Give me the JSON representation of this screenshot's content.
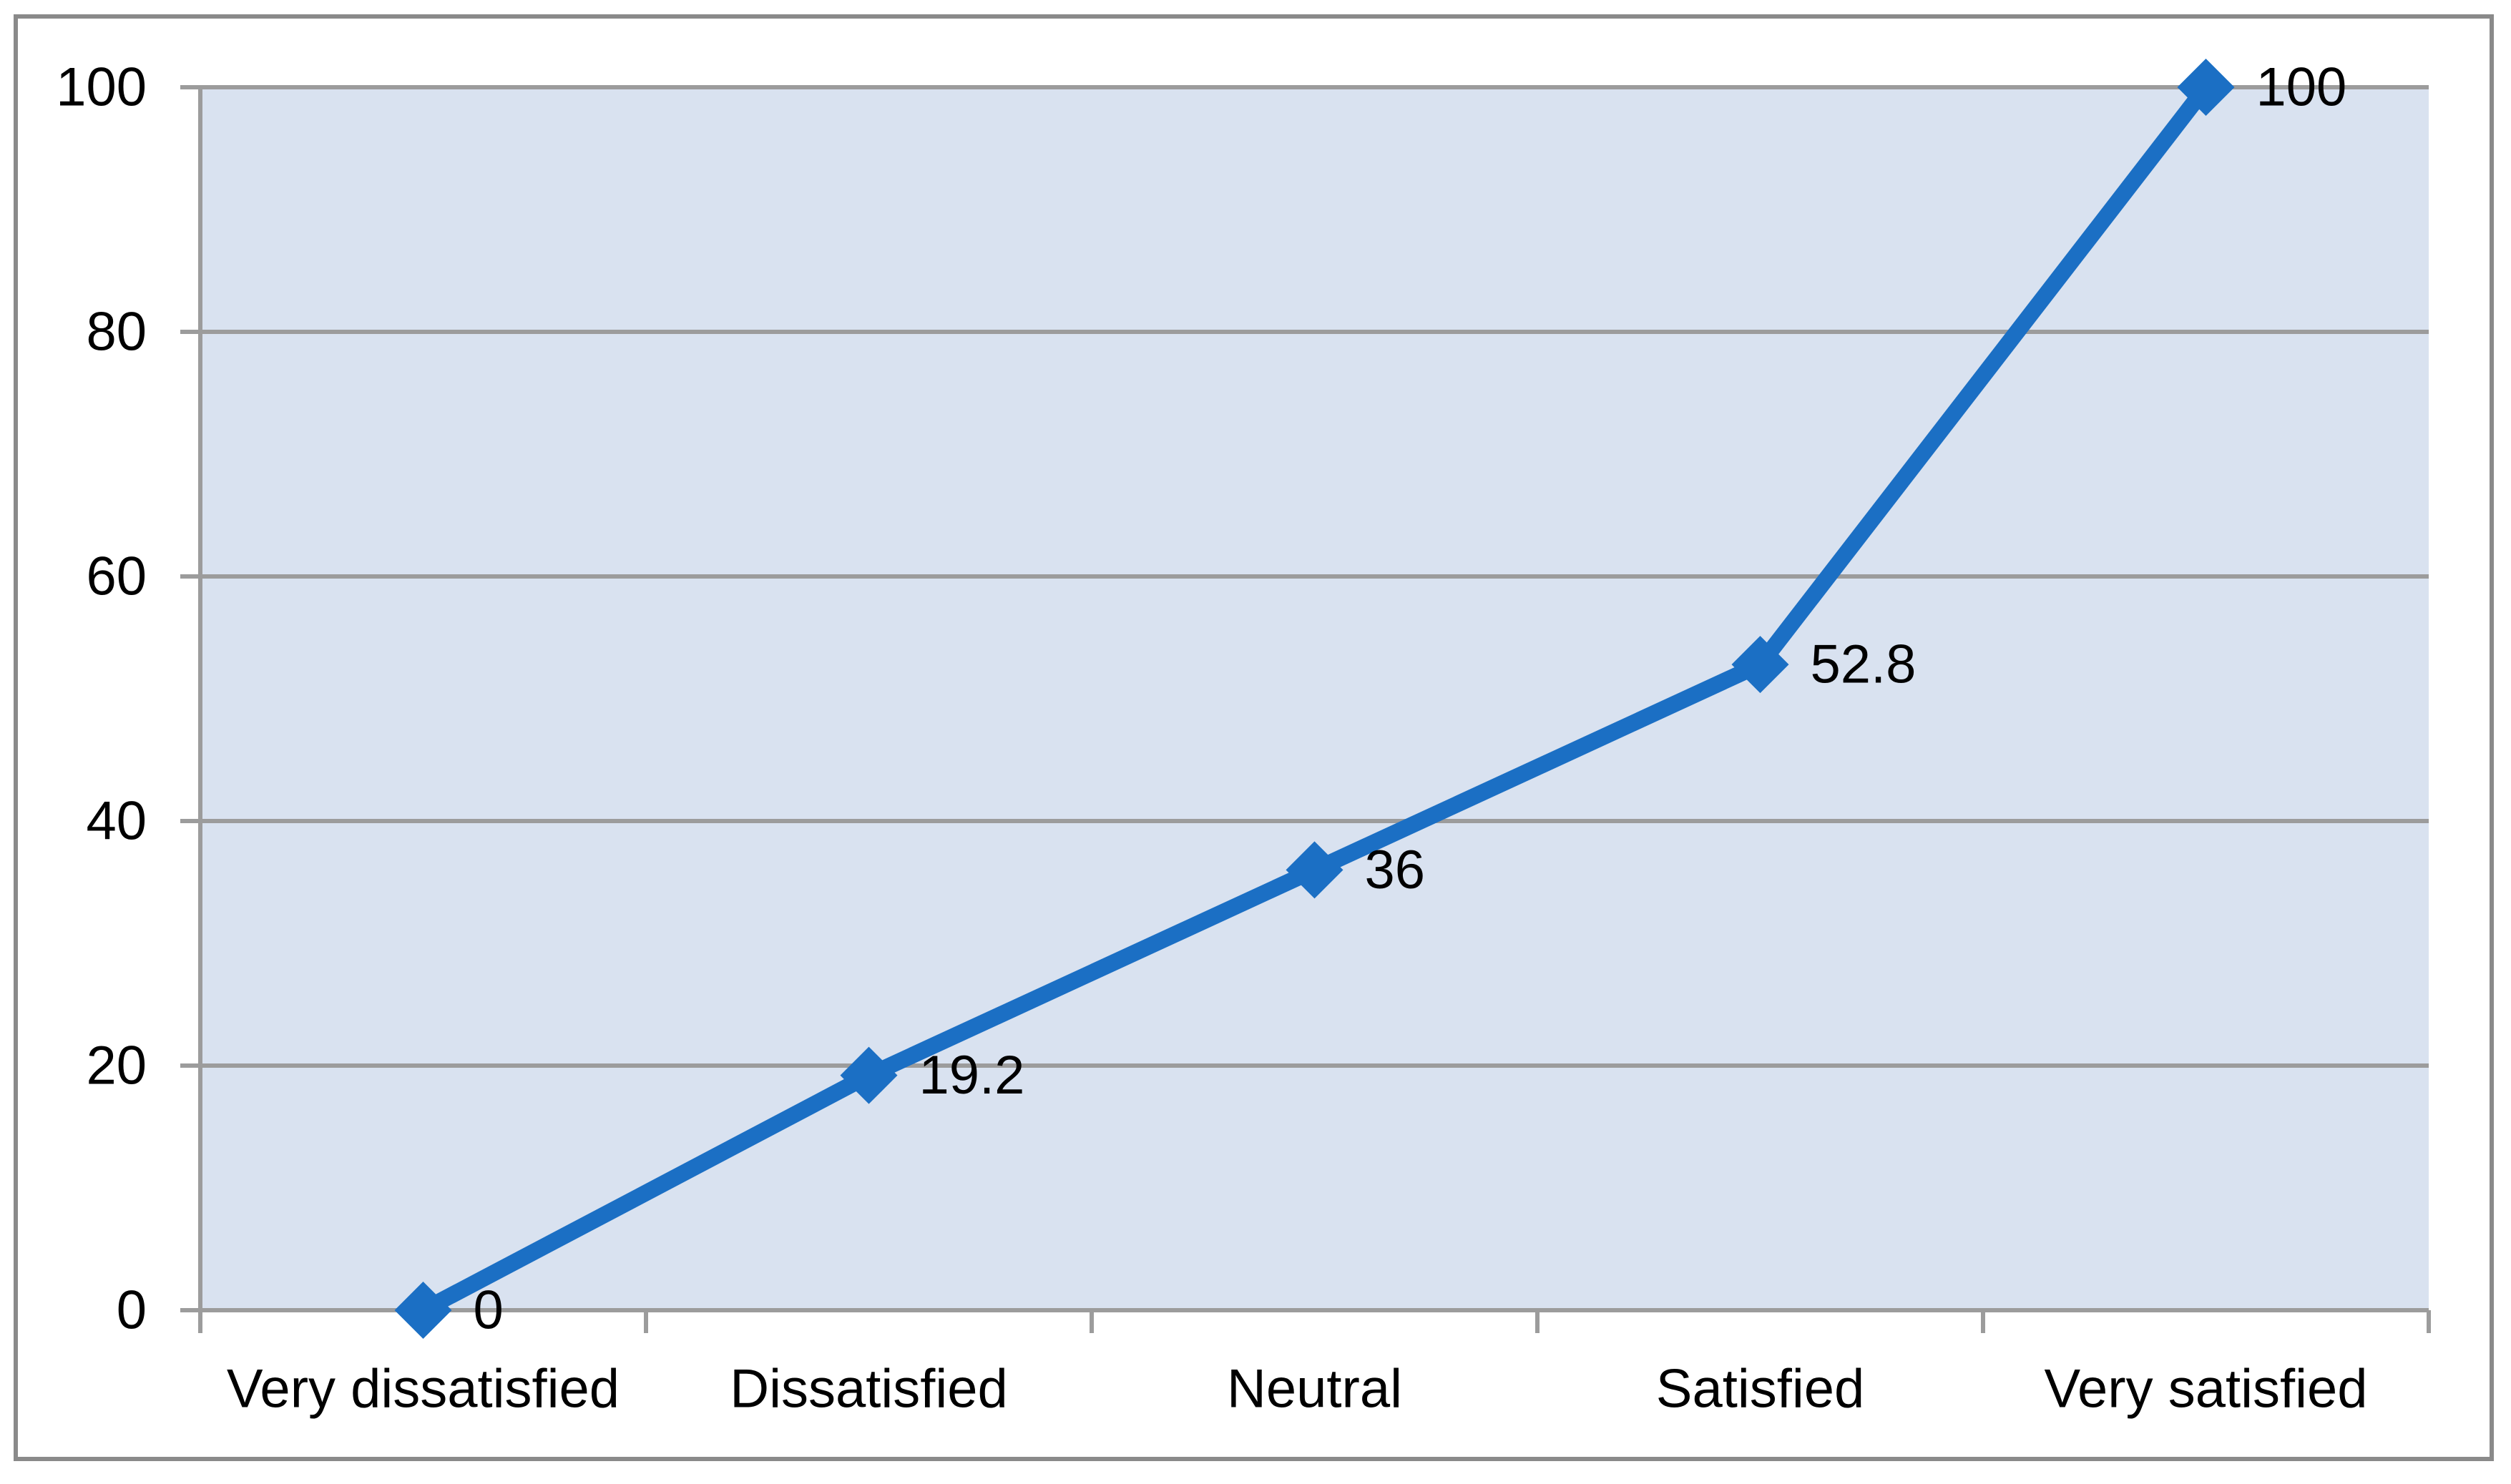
{
  "chart_data": {
    "type": "line",
    "title": "",
    "xlabel": "",
    "ylabel": "",
    "categories": [
      "Very dissatisfied",
      "Dissatisfied",
      "Neutral",
      "Satisfied",
      "Very satisfied"
    ],
    "values": [
      0,
      19.2,
      36,
      52.8,
      100
    ],
    "data_labels": [
      "0",
      "19.2",
      "36",
      "52.8",
      "100"
    ],
    "y_ticks": [
      0,
      20,
      40,
      60,
      80,
      100
    ],
    "ylim": [
      0,
      100
    ],
    "grid": true,
    "legend": "none",
    "marker": "diamond",
    "style": {
      "line_color": "#1B6FC4",
      "marker_color": "#1B6FC4",
      "plot_background": "#D9E2F0",
      "gridline_color": "#9C9C9C",
      "frame_color": "#8A8A8A",
      "text_color": "#000000"
    }
  }
}
